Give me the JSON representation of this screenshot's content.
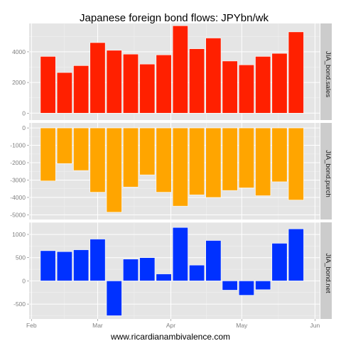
{
  "chart_data": {
    "type": "bar",
    "title": "Japanese foreign bond flows: JPYbn/wk",
    "caption": "www.ricardianambivalence.com",
    "x_ticks": [
      "Feb",
      "Mar",
      "Apr",
      "May",
      "Jun"
    ],
    "x_tick_dates": [
      "2013-02-01",
      "2013-03-01",
      "2013-04-01",
      "2013-05-01",
      "2013-06-01"
    ],
    "x": [
      "2013-02-08",
      "2013-02-15",
      "2013-02-22",
      "2013-03-01",
      "2013-03-08",
      "2013-03-15",
      "2013-03-22",
      "2013-03-29",
      "2013-04-05",
      "2013-04-12",
      "2013-04-19",
      "2013-04-26",
      "2013-05-03",
      "2013-05-10",
      "2013-05-17",
      "2013-05-24"
    ],
    "panels": [
      {
        "name": "JIA_bond.sales",
        "color": "#ff2000",
        "ylim": [
          -450,
          5850
        ],
        "y_ticks": [
          0,
          2000,
          4000
        ],
        "values": [
          3700,
          2650,
          3100,
          4600,
          4100,
          3850,
          3200,
          3800,
          5700,
          4200,
          4900,
          3400,
          3150,
          3700,
          3900,
          5300
        ]
      },
      {
        "name": "JIA_bond.purch",
        "color": "#ffa500",
        "ylim": [
          -5270,
          290
        ],
        "y_ticks": [
          -5000,
          -4000,
          -3000,
          -2000,
          -1000,
          0
        ],
        "values": [
          -3050,
          -2050,
          -2450,
          -3700,
          -4850,
          -3400,
          -2700,
          -3700,
          -4500,
          -3850,
          -4000,
          -3600,
          -3450,
          -3900,
          -3100,
          -4150
        ]
      },
      {
        "name": "JIA_bond.net",
        "color": "#0031ff",
        "ylim": [
          -820,
          1260
        ],
        "y_ticks": [
          -500,
          0,
          500,
          1000
        ],
        "values": [
          650,
          630,
          670,
          900,
          -750,
          470,
          500,
          150,
          1150,
          340,
          870,
          -200,
          -310,
          -190,
          810,
          1120
        ]
      }
    ],
    "grid": true,
    "legend": "none"
  }
}
